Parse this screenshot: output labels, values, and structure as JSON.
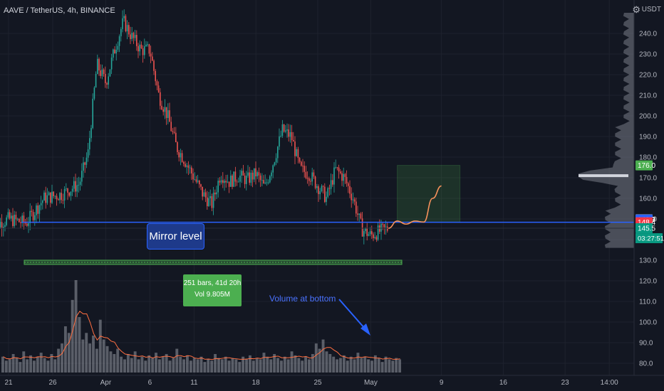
{
  "header": {
    "title": "AAVE / TetherUS, 4h, BINANCE",
    "currency": "USDT"
  },
  "annotations": {
    "mirror_level": "Mirror level",
    "range_bars": "251 bars, 41d 20h",
    "range_vol": "Vol 9.805M",
    "volume_note": "Volume at bottom"
  },
  "price_badges": [
    {
      "text": "176.0",
      "value": 176.0,
      "color": "#4caf50"
    },
    {
      "text": "149.9",
      "value": 149.9,
      "color": "#787b86"
    },
    {
      "text": "149.7",
      "value": 149.7,
      "color": "#2962ff"
    },
    {
      "text": "148.4",
      "value": 148.4,
      "color": "#f23645"
    },
    {
      "text": "145.5",
      "value": 145.5,
      "color": "#089981"
    }
  ],
  "countdown": "03:27:51",
  "colors": {
    "background": "#131722",
    "up": "#26a69a",
    "down": "#ef5350",
    "mirror_line": "#2962ff",
    "projection": "#f7925c",
    "target_box": "#4caf50"
  },
  "chart_data": {
    "type": "candlestick",
    "symbol": "AAVE / TetherUS",
    "interval": "4h",
    "exchange": "BINANCE",
    "y_axis": {
      "ticks": [
        80,
        90,
        100,
        110,
        120,
        130,
        140,
        150,
        160,
        170,
        180,
        190,
        200,
        210,
        220,
        230,
        240
      ],
      "tick_labels": [
        "80.0",
        "90.0",
        "100.0",
        "110.0",
        "120.0",
        "130.0",
        "140.0",
        "150.0",
        "160.0",
        "170.0",
        "180.0",
        "190.0",
        "200.0",
        "210.0",
        "220.0",
        "230.0",
        "240.0"
      ],
      "range": [
        77,
        250
      ]
    },
    "x_axis": {
      "tick_labels": [
        "21",
        "26",
        "Apr",
        "6",
        "11",
        "18",
        "25",
        "May",
        "9",
        "16",
        "23",
        "14:00"
      ],
      "tick_dates": [
        "03-21",
        "03-26",
        "04-01",
        "04-06",
        "04-11",
        "04-18",
        "04-25",
        "05-01",
        "05-09",
        "05-16",
        "05-23",
        "05-28"
      ]
    },
    "price_path": [
      [
        "03-19",
        146
      ],
      [
        "03-21",
        150
      ],
      [
        "03-23",
        148
      ],
      [
        "03-25",
        160
      ],
      [
        "03-27",
        162
      ],
      [
        "03-29",
        167
      ],
      [
        "03-30",
        182
      ],
      [
        "03-31",
        225
      ],
      [
        "04-01",
        216
      ],
      [
        "04-02",
        232
      ],
      [
        "04-03",
        246
      ],
      [
        "04-04",
        238
      ],
      [
        "04-05",
        232
      ],
      [
        "04-06",
        232
      ],
      [
        "04-07",
        210
      ],
      [
        "04-08",
        200
      ],
      [
        "04-09",
        185
      ],
      [
        "04-10",
        178
      ],
      [
        "04-11",
        170
      ],
      [
        "04-12",
        162
      ],
      [
        "04-13",
        157
      ],
      [
        "04-14",
        172
      ],
      [
        "04-15",
        168
      ],
      [
        "04-16",
        171
      ],
      [
        "04-17",
        169
      ],
      [
        "04-18",
        172
      ],
      [
        "04-19",
        165
      ],
      [
        "04-20",
        178
      ],
      [
        "04-21",
        193
      ],
      [
        "04-22",
        190
      ],
      [
        "04-23",
        174
      ],
      [
        "04-24",
        172
      ],
      [
        "04-25",
        166
      ],
      [
        "04-26",
        160
      ],
      [
        "04-27",
        174
      ],
      [
        "04-28",
        170
      ],
      [
        "04-29",
        160
      ],
      [
        "04-30",
        145
      ],
      [
        "05-01",
        142
      ],
      [
        "05-02",
        144
      ],
      [
        "05-03",
        145.5
      ]
    ],
    "mirror_level": 148.4,
    "projection_path": [
      [
        "05-03",
        145.5
      ],
      [
        "05-04",
        149
      ],
      [
        "05-05",
        147.5
      ],
      [
        "05-06",
        149
      ],
      [
        "05-07",
        148.5
      ],
      [
        "05-08",
        160
      ],
      [
        "05-09",
        166
      ]
    ],
    "target_box": {
      "x_start": "05-04",
      "x_end": "05-09",
      "y_low": 148.4,
      "y_high": 176.0
    },
    "measured_range": {
      "x_start": "03-19",
      "x_end": "05-02",
      "bars": 251,
      "duration": "41d 20h",
      "volume": "9.805M"
    },
    "volume": {
      "values": [
        12,
        9,
        10,
        14,
        11,
        8,
        16,
        10,
        13,
        9,
        12,
        15,
        11,
        9,
        14,
        10,
        18,
        22,
        35,
        30,
        55,
        70,
        42,
        25,
        30,
        22,
        28,
        18,
        40,
        25,
        20,
        16,
        14,
        18,
        12,
        10,
        14,
        11,
        16,
        10,
        12,
        9,
        13,
        11,
        15,
        10,
        12,
        14,
        9,
        11,
        18,
        12,
        10,
        13,
        9,
        11,
        10,
        12,
        8,
        10,
        9,
        14,
        11,
        10,
        12,
        9,
        11,
        10,
        8,
        12,
        10,
        13,
        9,
        11,
        10,
        15,
        12,
        10,
        14,
        11,
        9,
        12,
        10,
        16,
        13,
        11,
        9,
        12,
        10,
        14,
        22,
        18,
        25,
        16,
        14,
        12,
        10,
        11,
        13,
        9,
        12,
        10,
        15,
        11,
        12,
        10,
        9,
        13,
        11,
        8,
        12,
        10,
        9,
        11,
        10
      ],
      "max_volume_bar_date": "03-31"
    },
    "volume_profile_peak": 171
  }
}
